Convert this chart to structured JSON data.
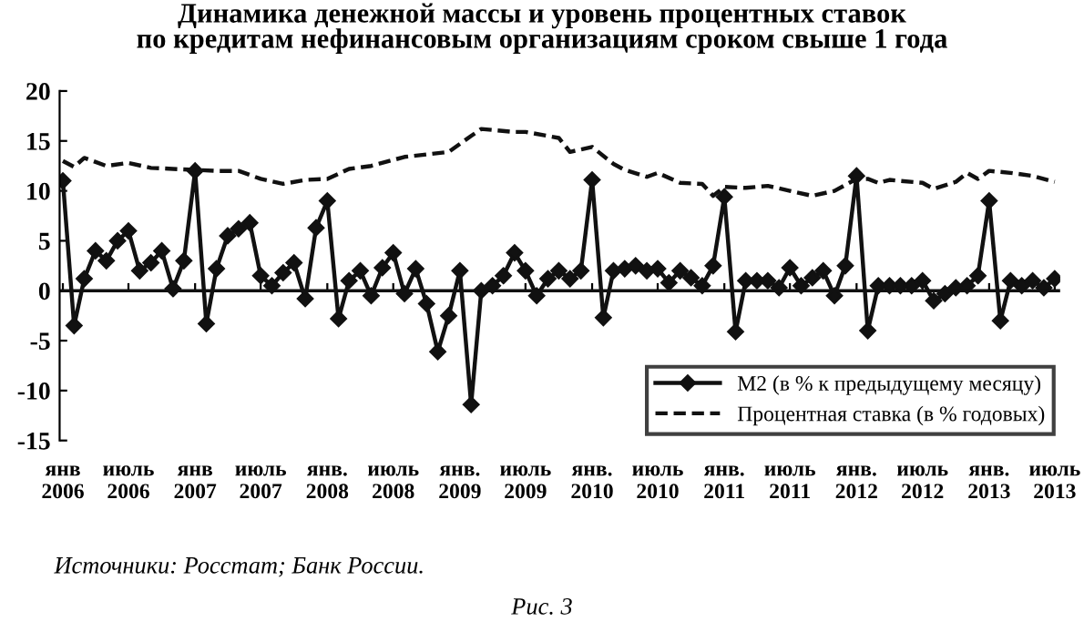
{
  "chart_data": {
    "type": "line",
    "title": "Динамика денежной массы и уровень процентных ставок\nпо кредитам нефинансовым организациям сроком свыше 1 года",
    "x": [
      "2006-01",
      "2006-02",
      "2006-03",
      "2006-04",
      "2006-05",
      "2006-06",
      "2006-07",
      "2006-08",
      "2006-09",
      "2006-10",
      "2006-11",
      "2006-12",
      "2007-01",
      "2007-02",
      "2007-03",
      "2007-04",
      "2007-05",
      "2007-06",
      "2007-07",
      "2007-08",
      "2007-09",
      "2007-10",
      "2007-11",
      "2007-12",
      "2008-01",
      "2008-02",
      "2008-03",
      "2008-04",
      "2008-05",
      "2008-06",
      "2008-07",
      "2008-08",
      "2008-09",
      "2008-10",
      "2008-11",
      "2008-12",
      "2009-01",
      "2009-02",
      "2009-03",
      "2009-04",
      "2009-05",
      "2009-06",
      "2009-07",
      "2009-08",
      "2009-09",
      "2009-10",
      "2009-11",
      "2009-12",
      "2010-01",
      "2010-02",
      "2010-03",
      "2010-04",
      "2010-05",
      "2010-06",
      "2010-07",
      "2010-08",
      "2010-09",
      "2010-10",
      "2010-11",
      "2010-12",
      "2011-01",
      "2011-02",
      "2011-03",
      "2011-04",
      "2011-05",
      "2011-06",
      "2011-07",
      "2011-08",
      "2011-09",
      "2011-10",
      "2011-11",
      "2011-12",
      "2012-01",
      "2012-02",
      "2012-03",
      "2012-04",
      "2012-05",
      "2012-06",
      "2012-07",
      "2012-08",
      "2012-09",
      "2012-10",
      "2012-11",
      "2012-12",
      "2013-01",
      "2013-02",
      "2013-03",
      "2013-04",
      "2013-05",
      "2013-06",
      "2013-07"
    ],
    "series": [
      {
        "name": "М2 (в % к предыдущему месяцу)",
        "color": "#111111",
        "marker": "diamond",
        "line_style": "solid",
        "values": [
          11,
          -3.5,
          1.2,
          4,
          3,
          5,
          6,
          2,
          2.8,
          4,
          0.2,
          3,
          12,
          -3.3,
          2.2,
          5.5,
          6.2,
          6.8,
          1.5,
          0.5,
          1.8,
          2.8,
          -0.8,
          6.3,
          9,
          -2.8,
          1,
          2,
          -0.5,
          2.3,
          3.8,
          -0.3,
          2.2,
          -1.3,
          -6.1,
          -2.5,
          2,
          -11.4,
          0,
          0.5,
          1.5,
          3.8,
          2,
          -0.5,
          1.2,
          2,
          1.2,
          2,
          11.1,
          -2.7,
          2,
          2.2,
          2.5,
          2,
          2.2,
          0.8,
          2,
          1.3,
          0.5,
          2.5,
          9.4,
          -4.1,
          1,
          1,
          1,
          0.3,
          2.3,
          0.5,
          1.3,
          2,
          -0.5,
          2.5,
          11.5,
          -4,
          0.5,
          0.5,
          0.5,
          0.5,
          1,
          -1,
          -0.3,
          0.3,
          0.5,
          1.5,
          9,
          -3,
          1,
          0.5,
          1,
          0.3,
          1.2
        ]
      },
      {
        "name": "Процентная ставка (в % годовых)",
        "color": "#111111",
        "marker": "none",
        "line_style": "dashed",
        "x": [
          "2006-01",
          "2006-02",
          "2006-03",
          "2006-05",
          "2006-07",
          "2006-09",
          "2006-11",
          "2007-01",
          "2007-03",
          "2007-05",
          "2007-07",
          "2007-09",
          "2007-11",
          "2008-01",
          "2008-03",
          "2008-05",
          "2008-08",
          "2008-12",
          "2009-02",
          "2009-03",
          "2009-06",
          "2009-07",
          "2009-09",
          "2009-10",
          "2009-11",
          "2010-01",
          "2010-03",
          "2010-04",
          "2010-06",
          "2010-07",
          "2010-09",
          "2010-11",
          "2010-12",
          "2011-01",
          "2011-03",
          "2011-05",
          "2011-07",
          "2011-09",
          "2011-11",
          "2012-01",
          "2012-02",
          "2012-03",
          "2012-04",
          "2012-07",
          "2012-08",
          "2012-10",
          "2012-11",
          "2012-12",
          "2013-01",
          "2013-03",
          "2013-05",
          "2013-07"
        ],
        "values": [
          13,
          12.4,
          13.3,
          12.5,
          12.8,
          12.3,
          12.2,
          12.1,
          12,
          12,
          11.2,
          10.7,
          11.1,
          11.2,
          12.2,
          12.5,
          13.4,
          13.9,
          15.5,
          16.2,
          15.9,
          15.9,
          15.5,
          15.3,
          13.9,
          14.4,
          12.7,
          12.1,
          11.4,
          11.8,
          10.8,
          10.7,
          9.5,
          10.4,
          10.3,
          10.5,
          10,
          9.5,
          10,
          11.2,
          11.2,
          10.8,
          11.1,
          10.8,
          10.2,
          10.9,
          11.8,
          11.2,
          12,
          11.8,
          11.5,
          10.9
        ]
      }
    ],
    "xlim": [
      "2005-12-23",
      "2013-07-16"
    ],
    "xticks": [
      {
        "value": "2006-01",
        "label": "янв\n2006"
      },
      {
        "value": "2006-07",
        "label": "июль\n2006"
      },
      {
        "value": "2007-01",
        "label": "янв\n2007"
      },
      {
        "value": "2007-07",
        "label": "июль\n2007"
      },
      {
        "value": "2008-01",
        "label": "янв.\n2008"
      },
      {
        "value": "2008-07",
        "label": "июль\n2008"
      },
      {
        "value": "2009-01",
        "label": "янв.\n2009"
      },
      {
        "value": "2009-07",
        "label": "июль\n2009"
      },
      {
        "value": "2010-01",
        "label": "янв.\n2010"
      },
      {
        "value": "2010-07",
        "label": "июль\n2010"
      },
      {
        "value": "2011-01",
        "label": "янв.\n2011"
      },
      {
        "value": "2011-07",
        "label": "июль\n2011"
      },
      {
        "value": "2012-01",
        "label": "янв.\n2012"
      },
      {
        "value": "2012-07",
        "label": "июль\n2012"
      },
      {
        "value": "2013-01",
        "label": "янв.\n2013"
      },
      {
        "value": "2013-07",
        "label": "июль\n2013"
      }
    ],
    "ylim": [
      -15,
      20
    ],
    "yticks": [
      -15,
      -10,
      -5,
      0,
      5,
      10,
      15,
      20
    ],
    "grid": false,
    "ref_lines": [
      {
        "axis": "y",
        "value": 0,
        "color": "#111111",
        "line_style": "solid"
      }
    ],
    "legend": "bottom right",
    "annotations": [
      "Источники: Росстат; Банк России.",
      "Рис. 3"
    ]
  }
}
